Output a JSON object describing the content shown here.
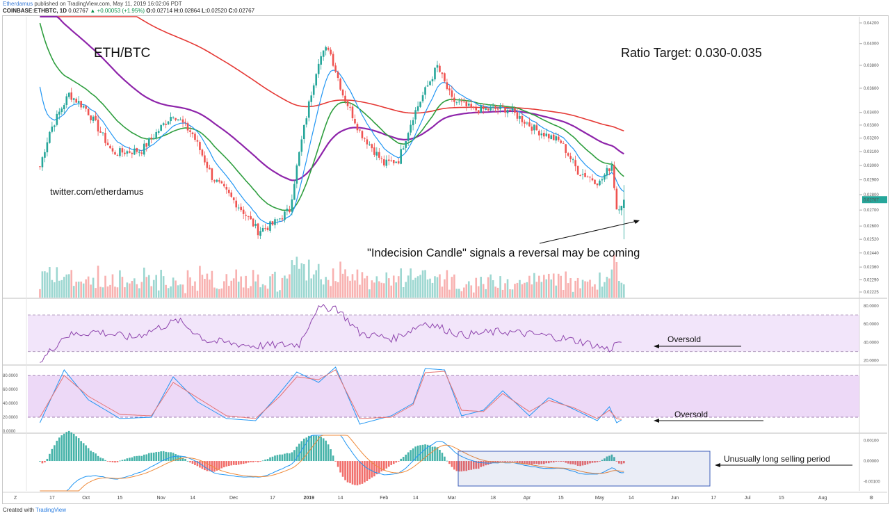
{
  "header": {
    "user": "Etherdamus",
    "published": "published on TradingView.com, May 11, 2019 16:02:06 PDT",
    "symbol": "COINBASE:ETHBTC, 1D",
    "ohlc": {
      "o_label": "O:",
      "o": "0.02714",
      "h_label": "H:",
      "h": "0.02864",
      "l_label": "L:",
      "l": "0.02520",
      "c_label": "C:",
      "c": "0.02767"
    },
    "last": "0.02767",
    "change": "▲ +0.00053 (+1.95%)"
  },
  "footer": {
    "created": "Created with",
    "brand": "TradingView"
  },
  "colors": {
    "up": "#26a69a",
    "down": "#ef5350",
    "ema_fast": "#2196f3",
    "ema_mid": "#2e9e3e",
    "ema_slow": "#8e24aa",
    "ema_long": "#e53935",
    "rsi": "#8e44ad",
    "stoch_k": "#2196f3",
    "stoch_d": "#e57373",
    "band": "#e8d0f5"
  },
  "annotations": {
    "pair": "ETH/BTC",
    "target": "Ratio Target: 0.030-0.035",
    "twitter": "twitter.com/etherdamus",
    "indecision": "\"Indecision Candle\" signals a reversal may be coming",
    "rsi_oversold": "Oversold",
    "stoch_oversold": "Oversold",
    "macd_note": "Unusually long selling period"
  },
  "chart_data": {
    "type": "candlestick",
    "title": "ETH/BTC",
    "symbol": "COINBASE:ETHBTC",
    "interval": "1D",
    "price_axis": {
      "ticks": [
        "0.04200",
        "0.04000",
        "0.03800",
        "0.03600",
        "0.03400",
        "0.03300",
        "0.03200",
        "0.03100",
        "0.03000",
        "0.02900",
        "0.02800",
        "0.02700",
        "0.02600",
        "0.02520",
        "0.02440",
        "0.02360",
        "0.02290",
        "0.02225"
      ],
      "last_price": "0.02767",
      "scale": "log"
    },
    "x_ticks": [
      "17",
      "Oct",
      "15",
      "Nov",
      "14",
      "Dec",
      "17",
      "2019",
      "14",
      "Feb",
      "14",
      "Mar",
      "18",
      "Apr",
      "15",
      "May",
      "14",
      "Jun",
      "17",
      "Jul",
      "15",
      "Aug"
    ],
    "price_anchors": {
      "x": [
        "2018-09-12",
        "2018-09-16",
        "2018-09-24",
        "2018-10-01",
        "2018-10-12",
        "2018-10-24",
        "2018-11-06",
        "2018-11-14",
        "2018-11-22",
        "2018-12-05",
        "2018-12-11",
        "2018-12-17",
        "2018-12-24",
        "2018-12-29",
        "2019-01-05",
        "2019-01-09",
        "2019-01-15",
        "2019-01-22",
        "2019-02-01",
        "2019-02-07",
        "2019-02-13",
        "2019-02-23",
        "2019-03-01",
        "2019-03-10",
        "2019-03-24",
        "2019-04-05",
        "2019-04-15",
        "2019-04-22",
        "2019-05-01",
        "2019-05-06",
        "2019-05-08",
        "2019-05-11"
      ],
      "close": [
        0.0299,
        0.0325,
        0.0355,
        0.0343,
        0.0309,
        0.0311,
        0.0339,
        0.0323,
        0.0292,
        0.0269,
        0.0257,
        0.0261,
        0.027,
        0.0318,
        0.0385,
        0.0397,
        0.0355,
        0.0325,
        0.0301,
        0.0304,
        0.0337,
        0.0379,
        0.035,
        0.0342,
        0.0343,
        0.0326,
        0.0317,
        0.0296,
        0.0288,
        0.0301,
        0.0271,
        0.02767
      ]
    },
    "moving_averages": [
      {
        "name": "EMA fast",
        "color": "#2196f3"
      },
      {
        "name": "EMA mid",
        "color": "#2e9e3e"
      },
      {
        "name": "EMA slow",
        "color": "#8e24aa"
      },
      {
        "name": "EMA long",
        "color": "#e53935"
      }
    ],
    "rsi": {
      "ticks": [
        "80.0000",
        "60.0000",
        "40.0000",
        "20.0000"
      ],
      "upper": 70,
      "lower": 30,
      "x": [
        "2018-09-12",
        "2018-09-22",
        "2018-10-05",
        "2018-10-20",
        "2018-11-08",
        "2018-11-20",
        "2018-12-10",
        "2018-12-28",
        "2019-01-04",
        "2019-01-12",
        "2019-01-22",
        "2019-02-05",
        "2019-02-18",
        "2019-03-05",
        "2019-03-22",
        "2019-04-10",
        "2019-04-25",
        "2019-05-05",
        "2019-05-09",
        "2019-05-11"
      ],
      "values": [
        18,
        47,
        52,
        45,
        64,
        42,
        36,
        38,
        76,
        79,
        50,
        44,
        62,
        48,
        52,
        47,
        40,
        32,
        42,
        34
      ]
    },
    "stoch": {
      "ticks": [
        "80.0000",
        "60.0000",
        "40.0000",
        "20.0000",
        "0.0000"
      ],
      "upper": 80,
      "lower": 20,
      "x": [
        "2018-09-12",
        "2018-09-22",
        "2018-10-02",
        "2018-10-15",
        "2018-10-28",
        "2018-11-06",
        "2018-11-16",
        "2018-11-28",
        "2018-12-10",
        "2018-12-20",
        "2018-12-27",
        "2019-01-05",
        "2019-01-12",
        "2019-01-22",
        "2019-02-04",
        "2019-02-13",
        "2019-02-18",
        "2019-02-26",
        "2019-03-05",
        "2019-03-14",
        "2019-03-22",
        "2019-04-02",
        "2019-04-10",
        "2019-04-20",
        "2019-04-30",
        "2019-05-05",
        "2019-05-08",
        "2019-05-11"
      ],
      "k": [
        12,
        88,
        45,
        18,
        20,
        78,
        42,
        18,
        15,
        55,
        85,
        70,
        92,
        10,
        22,
        40,
        90,
        88,
        22,
        30,
        58,
        22,
        48,
        32,
        15,
        35,
        12,
        18
      ],
      "d": [
        20,
        80,
        50,
        24,
        22,
        70,
        48,
        22,
        18,
        50,
        78,
        74,
        88,
        18,
        20,
        38,
        84,
        86,
        30,
        28,
        54,
        28,
        44,
        34,
        18,
        30,
        18,
        16
      ]
    },
    "macd": {
      "ticks": [
        "0.00100",
        "0.00000",
        "-0.00100"
      ]
    }
  }
}
